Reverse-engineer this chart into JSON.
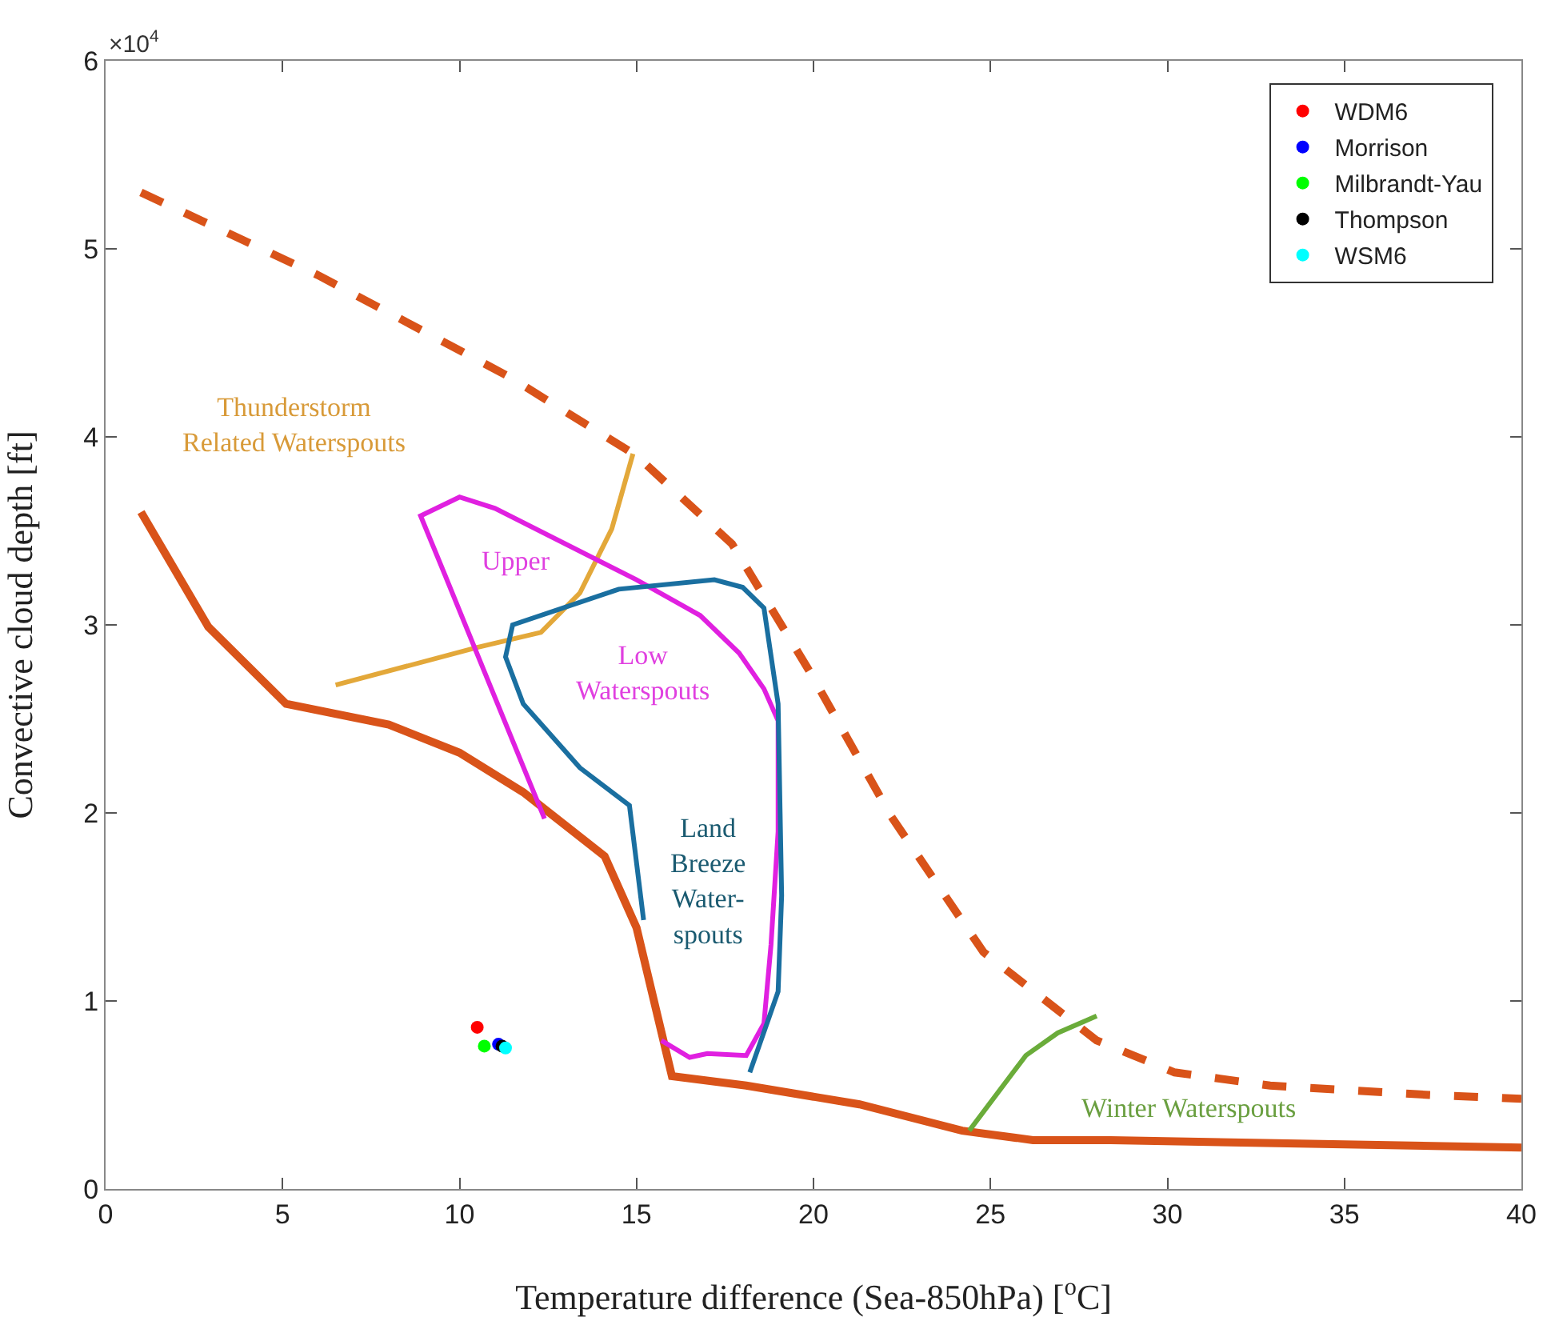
{
  "chart_data": {
    "type": "line",
    "xlabel": "Temperature difference (Sea-850hPa) [$^{o}$C]",
    "ylabel": "Convective cloud depth [ft]",
    "xlim": [
      0,
      40
    ],
    "xticks": [
      0,
      5,
      10,
      15,
      20,
      25,
      30,
      35,
      40
    ],
    "ylim": [
      0,
      6
    ],
    "yticks": [
      0,
      1,
      2,
      3,
      4,
      5,
      6
    ],
    "grid": false,
    "legend": "top right",
    "marker": "none",
    "line_style": "solid",
    "series": [
      {
        "color": "#d95319",
        "x": [
          1.0,
          2.9,
          5.1,
          8.0,
          10.0,
          11.8,
          14.1,
          15.0,
          16.0,
          18.1,
          21.3,
          24.2,
          26.2,
          28.4,
          40.0
        ],
        "values": [
          3.6,
          2.99,
          2.58,
          2.47,
          2.32,
          2.11,
          1.77,
          1.39,
          0.6,
          0.55,
          0.45,
          0.31,
          0.26,
          0.26,
          0.22
        ]
      },
      {
        "color": "#d95319",
        "line_style": "dashed",
        "x": [
          1.0,
          6.0,
          11.4,
          15.0,
          17.7,
          19.9,
          22.2,
          24.8,
          28.0,
          30.2,
          32.9,
          37.4,
          40.0
        ],
        "values": [
          5.3,
          4.86,
          4.32,
          3.9,
          3.43,
          2.75,
          1.98,
          1.26,
          0.79,
          0.62,
          0.55,
          0.5,
          0.48
        ]
      },
      {
        "color": "#e3a83a",
        "x": [
          6.5,
          10.5,
          12.3,
          13.4,
          14.3,
          14.9
        ],
        "values": [
          2.68,
          2.88,
          2.96,
          3.17,
          3.51,
          3.91
        ]
      },
      {
        "color": "#e020e0",
        "x": [
          12.4,
          10.9,
          9.6,
          8.9,
          10.0,
          11.0,
          15.0,
          16.8,
          17.9,
          18.6,
          19.0,
          19.0,
          18.8,
          18.6,
          18.1,
          17.0,
          16.5,
          15.7
        ],
        "values": [
          1.97,
          2.66,
          3.26,
          3.58,
          3.68,
          3.62,
          3.24,
          3.05,
          2.85,
          2.66,
          2.49,
          1.9,
          1.3,
          0.88,
          0.71,
          0.72,
          0.7,
          0.79
        ]
      },
      {
        "color": "#1a6fa0",
        "x": [
          15.2,
          14.8,
          13.4,
          11.8,
          11.3,
          11.5,
          14.5,
          17.2,
          18.0,
          18.6,
          19.0,
          19.1,
          19.0,
          18.2
        ],
        "values": [
          1.43,
          2.04,
          2.24,
          2.58,
          2.83,
          3.0,
          3.19,
          3.24,
          3.2,
          3.09,
          2.58,
          1.56,
          1.05,
          0.62
        ]
      },
      {
        "color": "#6aac3a",
        "x": [
          24.4,
          26.0,
          26.9,
          28.0
        ],
        "values": [
          0.31,
          0.71,
          0.83,
          0.92
        ]
      },
      {
        "type": "scatter",
        "name": "WDM6",
        "color": "#ff0000",
        "marker": "circle",
        "x": [
          10.5
        ],
        "values": [
          0.86
        ]
      },
      {
        "type": "scatter",
        "name": "Morrison",
        "color": "#0000ff",
        "marker": "circle",
        "x": [
          11.1
        ],
        "values": [
          0.77
        ]
      },
      {
        "type": "scatter",
        "name": "Milbrandt-Yau",
        "color": "#00ff00",
        "marker": "circle",
        "x": [
          10.7
        ],
        "values": [
          0.76
        ]
      },
      {
        "type": "scatter",
        "name": "Thompson",
        "color": "#000000",
        "marker": "circle",
        "x": [
          11.2
        ],
        "values": [
          0.76
        ]
      },
      {
        "type": "scatter",
        "name": "WSM6",
        "color": "#00ffff",
        "marker": "circle",
        "x": [
          11.3
        ],
        "values": [
          0.75
        ]
      }
    ],
    "annotations": [
      "×10$^{4}$",
      "Thunderstorm\nRelated Waterspouts",
      "Upper",
      "Low\nWaterspouts",
      "Land\nBreeze\nWater-\nspouts",
      "Winter Waterspouts"
    ]
  }
}
